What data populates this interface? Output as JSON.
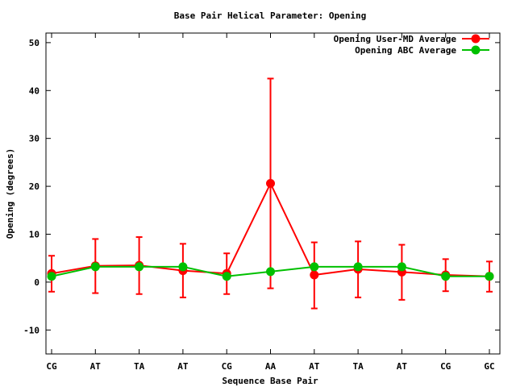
{
  "chart_data": {
    "type": "line",
    "title": "Base Pair Helical Parameter: Opening",
    "xlabel": "Sequence Base Pair",
    "ylabel": "Opening (degrees)",
    "categories": [
      "CG",
      "AT",
      "TA",
      "AT",
      "CG",
      "AA",
      "AT",
      "TA",
      "AT",
      "CG",
      "GC"
    ],
    "ylim": [
      -15,
      52
    ],
    "yticks": [
      -10,
      0,
      10,
      20,
      30,
      40,
      50
    ],
    "grid": false,
    "legend": "top-right",
    "series": [
      {
        "name": "Opening User-MD Average",
        "color": "#ff0000",
        "values": [
          1.8,
          3.4,
          3.5,
          2.4,
          1.8,
          20.6,
          1.5,
          2.7,
          2.1,
          1.5,
          1.2
        ],
        "err_low": [
          -2.0,
          -2.3,
          -2.5,
          -3.2,
          -2.5,
          -1.3,
          -5.5,
          -3.2,
          -3.7,
          -1.9,
          -2.0
        ],
        "err_high": [
          5.5,
          9.0,
          9.4,
          8.0,
          6.0,
          42.5,
          8.3,
          8.5,
          7.8,
          4.8,
          4.3
        ]
      },
      {
        "name": "Opening ABC Average",
        "color": "#00c000",
        "values": [
          1.2,
          3.2,
          3.2,
          3.2,
          1.2,
          2.2,
          3.2,
          3.2,
          3.2,
          1.2,
          1.2
        ]
      }
    ]
  }
}
